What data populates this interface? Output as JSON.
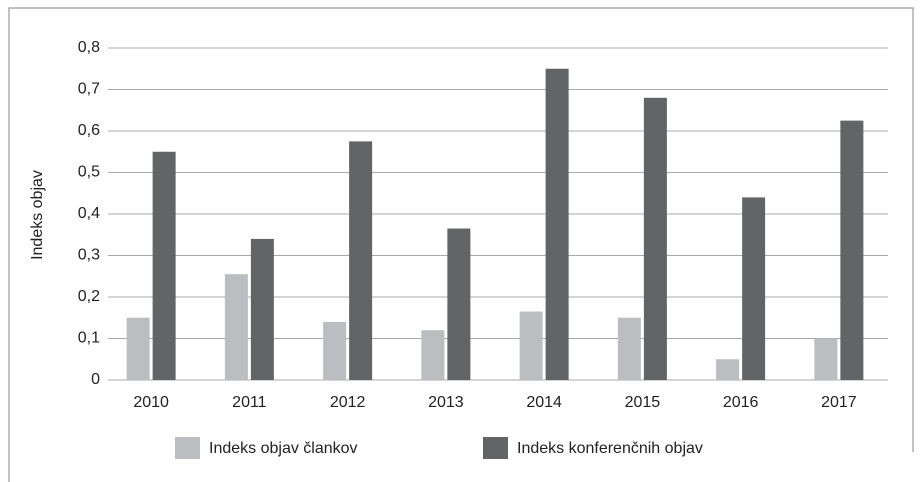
{
  "chart_data": {
    "type": "bar",
    "y_label": "Indeks objav",
    "categories": [
      "2010",
      "2011",
      "2012",
      "2013",
      "2014",
      "2015",
      "2016",
      "2017"
    ],
    "series": [
      {
        "name": "Indeks objav člankov",
        "color": "#bcbdc0",
        "values": [
          0.15,
          0.255,
          0.14,
          0.12,
          0.165,
          0.15,
          0.05,
          0.1
        ]
      },
      {
        "name": "Indeks konferenčnih objav",
        "color": "#636466",
        "values": [
          0.55,
          0.34,
          0.575,
          0.365,
          0.75,
          0.68,
          0.44,
          0.625
        ]
      }
    ],
    "ylim": [
      0,
      0.8
    ],
    "yticks": [
      0,
      {
        "value": 0.1,
        "label": "0,1"
      },
      {
        "value": 0.2,
        "label": "0,2"
      },
      {
        "value": 0.3,
        "label": "0,3"
      },
      {
        "value": 0.4,
        "label": "0,4"
      },
      {
        "value": 0.5,
        "label": "0,5"
      },
      {
        "value": 0.6,
        "label": "0,6"
      },
      {
        "value": 0.7,
        "label": "0,7"
      },
      {
        "value": 0.8,
        "label": "0,8"
      }
    ],
    "grid": true,
    "legend": "bottom"
  }
}
